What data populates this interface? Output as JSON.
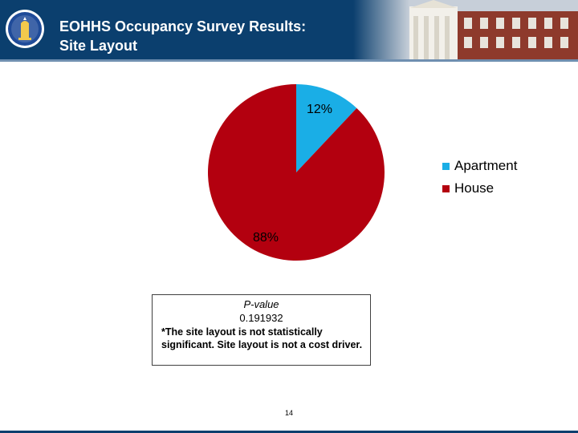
{
  "header": {
    "title_line1": "EOHHS Occupancy Survey Results:",
    "title_line2": "Site Layout",
    "background_color": "#0b3f6e",
    "seal_icon": "massachusetts-seal-icon",
    "photo_icon": "state-house-building-image"
  },
  "chart_data": {
    "type": "pie",
    "title": "",
    "slices": [
      {
        "label": "Apartment",
        "value": 12,
        "display": "12%",
        "color": "#1aaee6"
      },
      {
        "label": "House",
        "value": 88,
        "display": "88%",
        "color": "#b3000f"
      }
    ],
    "start_angle_deg": 0,
    "direction": "clockwise",
    "legend_position": "right"
  },
  "note": {
    "pvalue_label": "P-value",
    "pvalue": "0.191932",
    "text": "*The site layout is not statistically significant.  Site layout is not a cost driver."
  },
  "footer": {
    "page_number": "14",
    "rule_color": "#0b3f6e"
  }
}
